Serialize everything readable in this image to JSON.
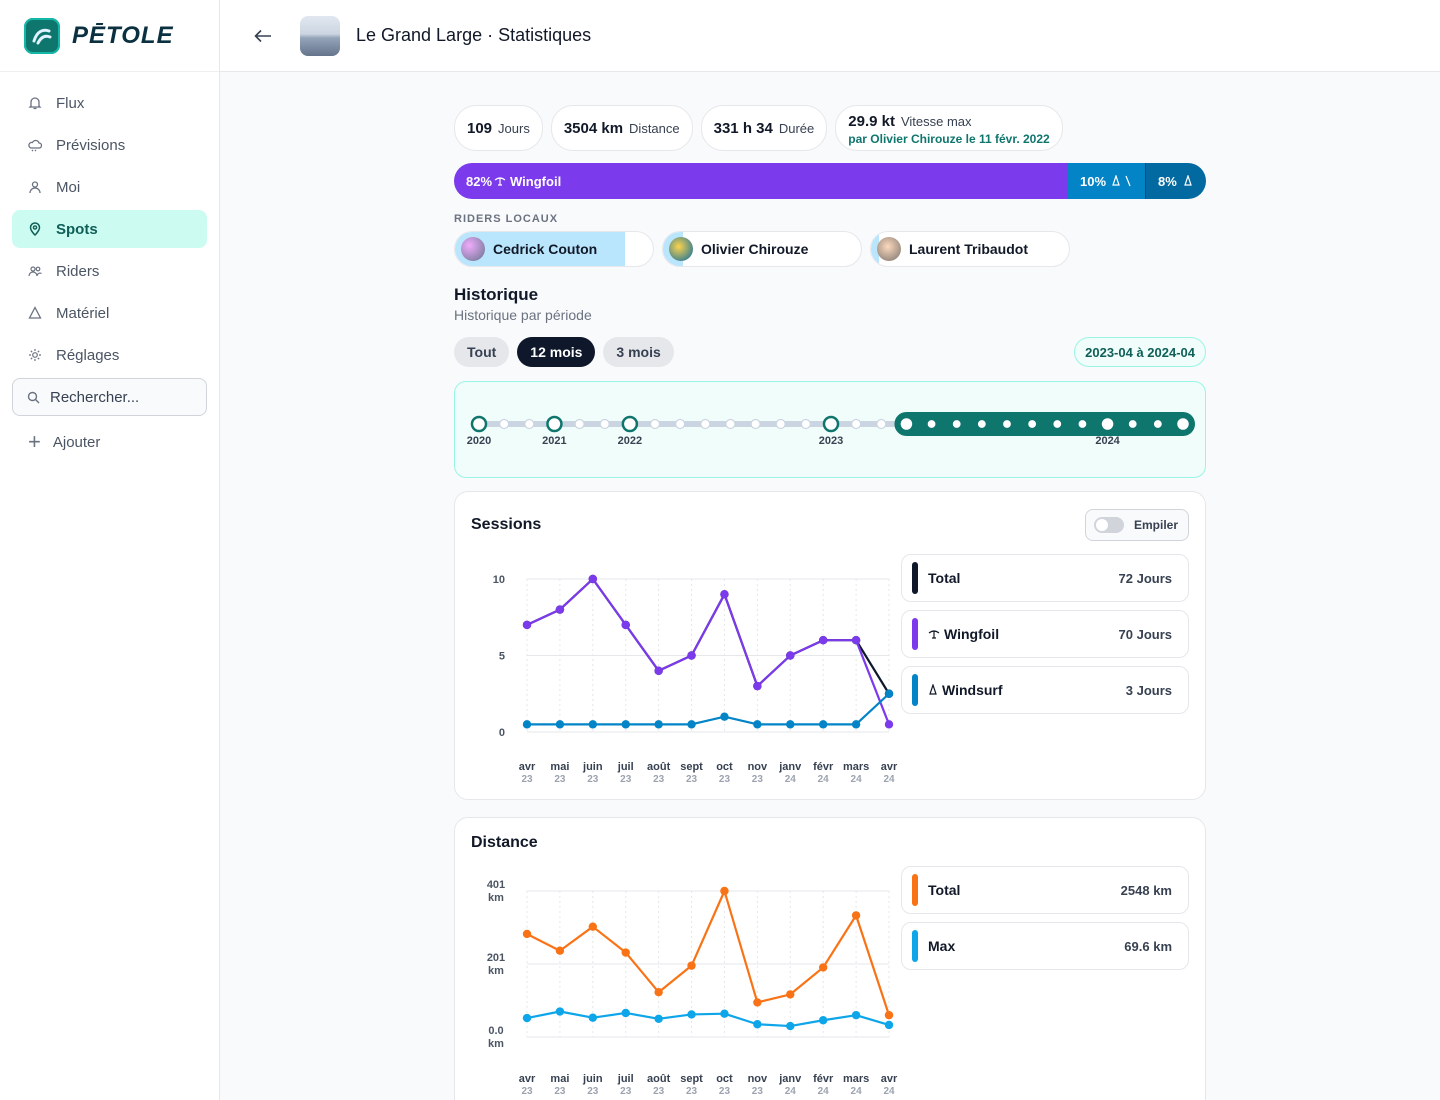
{
  "app": {
    "name": "PĒTOLE"
  },
  "sidebar": {
    "items": [
      {
        "label": "Flux",
        "icon": "bell-icon"
      },
      {
        "label": "Prévisions",
        "icon": "cloud-icon"
      },
      {
        "label": "Moi",
        "icon": "user-icon"
      },
      {
        "label": "Spots",
        "icon": "map-pin-icon"
      },
      {
        "label": "Riders",
        "icon": "users-icon"
      },
      {
        "label": "Matériel",
        "icon": "sail-icon"
      },
      {
        "label": "Réglages",
        "icon": "sun-gear-icon"
      }
    ],
    "active": "Spots",
    "search_placeholder": "Rechercher...",
    "add_label": "Ajouter"
  },
  "header": {
    "title": "Le Grand Large · Statistiques"
  },
  "stats": {
    "days_value": "109",
    "days_label": "Jours",
    "distance_value": "3504 km",
    "distance_label": "Distance",
    "duration_value": "331 h 34",
    "duration_label": "Durée",
    "speed_value": "29.9 kt",
    "speed_label": "Vitesse max",
    "speed_record": "par Olivier Chirouze le 11 févr. 2022"
  },
  "split": [
    {
      "label": "82% ",
      "sport": "Wingfoil",
      "percent": 82,
      "color": "#7c3aed"
    },
    {
      "label": "10%",
      "percent": 10,
      "color": "#0284c7"
    },
    {
      "label": "8%",
      "percent": 8,
      "color": "#0369a1"
    }
  ],
  "riders_title": "RIDERS LOCAUX",
  "riders": [
    {
      "name": "Cedrick Couton",
      "share": 0.86
    },
    {
      "name": "Olivier Chirouze",
      "share": 0.1
    },
    {
      "name": "Laurent Tribaudot",
      "share": 0.04
    }
  ],
  "history": {
    "title": "Historique",
    "subtitle": "Historique par période",
    "tabs": [
      "Tout",
      "12 mois",
      "3 mois"
    ],
    "active_tab": "12 mois",
    "range": "2023-04 à 2024-04",
    "timeline_years": [
      "2020",
      "2021",
      "2022",
      "2023",
      "2024"
    ]
  },
  "sessions_card": {
    "title": "Sessions",
    "toggle_label": "Empiler",
    "legend": [
      {
        "name": "Total",
        "value": "72 Jours",
        "color": "#0f172a"
      },
      {
        "name": "Wingfoil",
        "value": "70 Jours",
        "color": "#7c3aed"
      },
      {
        "name": "Windsurf",
        "value": "3 Jours",
        "color": "#0284c7"
      }
    ]
  },
  "distance_card": {
    "title": "Distance",
    "legend": [
      {
        "name": "Total",
        "value": "2548 km",
        "color": "#f97316"
      },
      {
        "name": "Max",
        "value": "69.6 km",
        "color": "#0ea5e9"
      }
    ]
  },
  "chart_data": [
    {
      "type": "line",
      "title": "Sessions",
      "x": [
        "avr 23",
        "mai 23",
        "juin 23",
        "juil 23",
        "août 23",
        "sept 23",
        "oct 23",
        "nov 23",
        "janv 24",
        "févr 24",
        "mars 24",
        "avr 24"
      ],
      "x_months": [
        "avr",
        "mai",
        "juin",
        "juil",
        "août",
        "sept",
        "oct",
        "nov",
        "janv",
        "févr",
        "mars",
        "avr"
      ],
      "x_years": [
        "23",
        "23",
        "23",
        "23",
        "23",
        "23",
        "23",
        "23",
        "24",
        "24",
        "24",
        "24"
      ],
      "yticks": [
        "0",
        "5",
        "10"
      ],
      "ylim": [
        0,
        10
      ],
      "series": [
        {
          "name": "Total",
          "values": [
            7,
            8,
            10,
            7,
            4,
            5,
            9,
            3,
            5,
            6,
            6,
            2.5
          ],
          "color": "#0f172a"
        },
        {
          "name": "Wingfoil",
          "values": [
            7,
            8,
            10,
            7,
            4,
            5,
            9,
            3,
            5,
            6,
            6,
            0.5
          ],
          "color": "#7c3aed"
        },
        {
          "name": "Windsurf",
          "values": [
            0.5,
            0.5,
            0.5,
            0.5,
            0.5,
            0.5,
            1,
            0.5,
            0.5,
            0.5,
            0.5,
            2.5
          ],
          "color": "#0284c7"
        }
      ]
    },
    {
      "type": "line",
      "title": "Distance",
      "x": [
        "avr 23",
        "mai 23",
        "juin 23",
        "juil 23",
        "août 23",
        "sept 23",
        "oct 23",
        "nov 23",
        "janv 24",
        "févr 24",
        "mars 24",
        "avr 24"
      ],
      "x_months": [
        "avr",
        "mai",
        "juin",
        "juil",
        "août",
        "sept",
        "oct",
        "nov",
        "janv",
        "févr",
        "mars",
        "avr"
      ],
      "x_years": [
        "23",
        "23",
        "23",
        "23",
        "23",
        "23",
        "23",
        "23",
        "24",
        "24",
        "24",
        "24"
      ],
      "yticks": [
        [
          "0.0",
          "km"
        ],
        [
          "201",
          "km"
        ],
        [
          "401",
          "km"
        ]
      ],
      "ylim": [
        0,
        401
      ],
      "series": [
        {
          "name": "Total",
          "values": [
            283,
            237,
            303,
            232,
            123,
            196,
            401,
            95,
            117,
            191,
            334,
            60
          ],
          "color": "#f97316"
        },
        {
          "name": "Max",
          "values": [
            52,
            70,
            53,
            66,
            50,
            62,
            64,
            35,
            30,
            46,
            60,
            33
          ],
          "color": "#0ea5e9"
        }
      ]
    }
  ]
}
